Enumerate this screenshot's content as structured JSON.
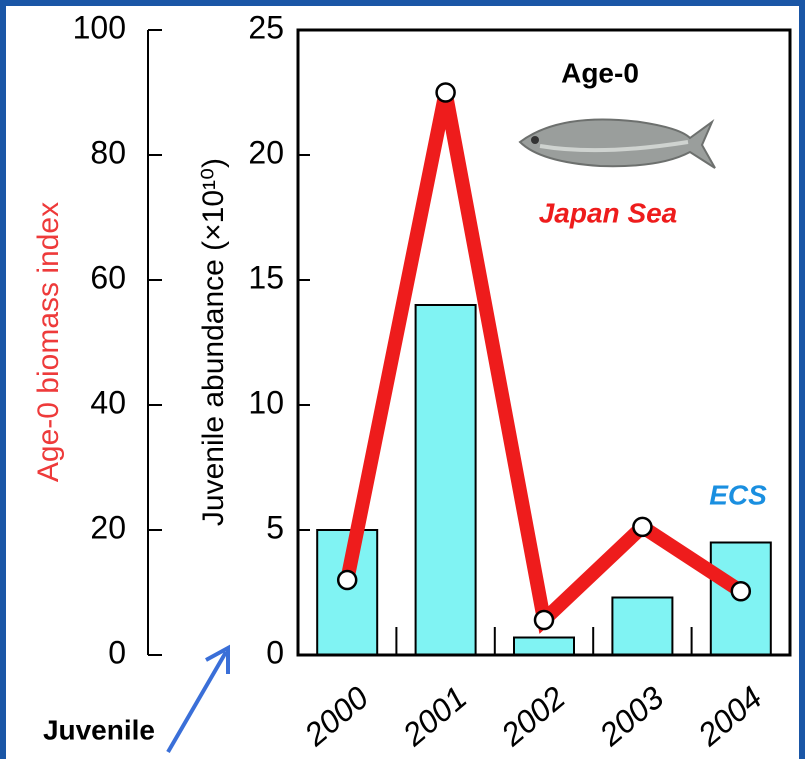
{
  "chart_data": {
    "type": "bar",
    "categories": [
      "2000",
      "2001",
      "2002",
      "2003",
      "2004"
    ],
    "series": [
      {
        "name": "ECS",
        "type": "bar",
        "color": "#80f3f3",
        "axis": "y2",
        "values": [
          5.0,
          14.0,
          0.7,
          2.3,
          4.5
        ]
      },
      {
        "name": "Japan Sea",
        "type": "line",
        "color": "#ee1c1c",
        "values": [
          12,
          90,
          5.6,
          20.5,
          10.2
        ]
      }
    ],
    "ylabel": "Age-0 biomass index",
    "ylim": [
      0,
      100
    ],
    "yticks": [
      0,
      20,
      40,
      60,
      80,
      100
    ],
    "y2label": "Juvenile abundance (×10¹⁰)",
    "y2lim": [
      0,
      25
    ],
    "y2ticks": [
      0,
      5,
      10,
      15,
      20,
      25
    ],
    "annotations": [
      "Age-0",
      "Juvenile"
    ]
  }
}
